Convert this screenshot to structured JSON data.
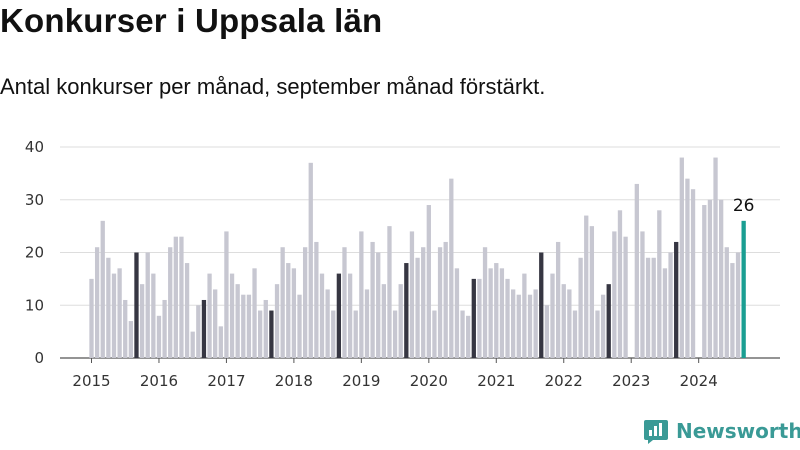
{
  "title": "Konkurser i Uppsala län",
  "subtitle": "Antal konkurser per månad, september månad förstärkt.",
  "brand": {
    "name": "Newsworthy",
    "icon": "newsworthy-logo-icon",
    "color": "#3a9a96"
  },
  "colors": {
    "bar": "#c7c7d1",
    "september": "#363642",
    "latest": "#1a9e92",
    "grid": "#dddddd"
  },
  "chart_data": {
    "type": "bar",
    "title": "Konkurser i Uppsala län",
    "subtitle": "Antal konkurser per månad, september månad förstärkt.",
    "ylim": [
      0,
      40
    ],
    "y_ticks": [
      0,
      10,
      20,
      30,
      40
    ],
    "x_tick_labels": [
      "2015",
      "2016",
      "2017",
      "2018",
      "2019",
      "2020",
      "2021",
      "2022",
      "2023",
      "2024"
    ],
    "grid": true,
    "start": "2015-01",
    "highlight_month": 9,
    "values": [
      15,
      21,
      26,
      19,
      16,
      17,
      11,
      7,
      20,
      14,
      20,
      16,
      8,
      11,
      21,
      23,
      23,
      18,
      5,
      10,
      11,
      16,
      13,
      6,
      24,
      16,
      14,
      12,
      12,
      17,
      9,
      11,
      9,
      14,
      21,
      18,
      17,
      12,
      21,
      37,
      22,
      16,
      13,
      9,
      16,
      21,
      16,
      9,
      24,
      13,
      22,
      20,
      14,
      25,
      9,
      14,
      18,
      24,
      19,
      21,
      29,
      9,
      21,
      22,
      34,
      17,
      9,
      8,
      15,
      15,
      21,
      17,
      18,
      17,
      15,
      13,
      12,
      16,
      12,
      13,
      20,
      10,
      16,
      22,
      14,
      13,
      9,
      19,
      27,
      25,
      9,
      12,
      14,
      24,
      28,
      23,
      0,
      33,
      24,
      19,
      19,
      28,
      17,
      20,
      22,
      38,
      34,
      32,
      0,
      29,
      30,
      38,
      30,
      21,
      18,
      20,
      26
    ],
    "latest_label": "26"
  }
}
